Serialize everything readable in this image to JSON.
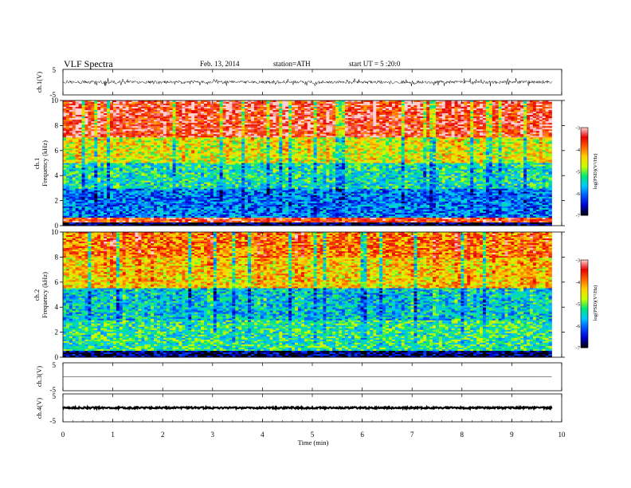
{
  "header": {
    "title": "VLF Spectra",
    "date": "Feb. 13, 2014",
    "station": "station=ATH",
    "start": "start UT = 5 :20:0"
  },
  "chart_data": [
    {
      "type": "line",
      "panel": "ch1-waveform",
      "ylabel": "ch.1(V)",
      "ylim": [
        -5,
        5
      ],
      "y_ticks": [
        "5",
        "-5"
      ],
      "xlim": [
        0,
        10
      ],
      "data_extent_min": [
        0,
        9.8
      ],
      "description_values": {
        "baseline_V": 0.0,
        "typical_noise_amplitude_V": 0.6,
        "max_spike_amplitude_V": 1.6
      }
    },
    {
      "type": "heatmap",
      "panel": "ch1-spectrogram",
      "ylabel": "ch.1 Frequency (kHz)",
      "ylim": [
        0,
        10
      ],
      "y_ticks": [
        "0",
        "2",
        "4",
        "6",
        "8",
        "10"
      ],
      "xlim": [
        0,
        10
      ],
      "data_extent_min": [
        0,
        9.8
      ],
      "colorbar": {
        "label": "log(PSD)(V²/Hz)",
        "range": [
          -7,
          -3
        ],
        "ticks": [
          "-3",
          "-4",
          "-5",
          "-6",
          "-7"
        ]
      },
      "frequency_profile": [
        {
          "freq_kHz": [
            0.0,
            0.3
          ],
          "logPSD": -6.8
        },
        {
          "freq_kHz": [
            0.3,
            0.6
          ],
          "logPSD": -3.6
        },
        {
          "freq_kHz": [
            0.6,
            3.0
          ],
          "logPSD": -6.0
        },
        {
          "freq_kHz": [
            3.0,
            5.0
          ],
          "logPSD": -5.4
        },
        {
          "freq_kHz": [
            5.0,
            7.0
          ],
          "logPSD": -4.6
        },
        {
          "freq_kHz": [
            7.0,
            10.0
          ],
          "logPSD": -3.5
        }
      ]
    },
    {
      "type": "heatmap",
      "panel": "ch2-spectrogram",
      "ylabel": "ch.2 Frequency (kHz)",
      "ylim": [
        0,
        10
      ],
      "y_ticks": [
        "0",
        "2",
        "4",
        "6",
        "8",
        "10"
      ],
      "xlim": [
        0,
        10
      ],
      "data_extent_min": [
        0,
        9.8
      ],
      "colorbar": {
        "label": "log(PSD)(V²/Hz)",
        "range": [
          -7,
          -3
        ],
        "ticks": [
          "-3",
          "-4",
          "-5",
          "-6",
          "-7"
        ]
      },
      "frequency_profile": [
        {
          "freq_kHz": [
            0.0,
            0.5
          ],
          "logPSD": -6.8
        },
        {
          "freq_kHz": [
            0.5,
            3.0
          ],
          "logPSD": -5.3
        },
        {
          "freq_kHz": [
            3.0,
            5.5
          ],
          "logPSD": -5.6
        },
        {
          "freq_kHz": [
            5.5,
            8.0
          ],
          "logPSD": -4.4
        },
        {
          "freq_kHz": [
            8.0,
            10.0
          ],
          "logPSD": -4.0
        }
      ]
    },
    {
      "type": "line",
      "panel": "ch3-waveform",
      "ylabel": "ch.3(V)",
      "ylim": [
        -5,
        5
      ],
      "y_ticks": [
        "5",
        "-5"
      ],
      "xlim": [
        0,
        10
      ],
      "data_extent_min": [
        0,
        9.8
      ],
      "description_values": {
        "baseline_V": 0.0,
        "typical_noise_amplitude_V": 0.05
      }
    },
    {
      "type": "line",
      "panel": "ch4-waveform",
      "ylabel": "ch.4(V)",
      "ylim": [
        -5,
        5
      ],
      "y_ticks": [
        "5",
        "-5"
      ],
      "xlim": [
        0,
        10
      ],
      "data_extent_min": [
        0,
        9.8
      ],
      "description_values": {
        "baseline_V": 0.0,
        "typical_noise_amplitude_V": 0.3
      }
    }
  ],
  "x_axis": {
    "label": "Time (min)",
    "ticks": [
      "0",
      "1",
      "2",
      "3",
      "4",
      "5",
      "6",
      "7",
      "8",
      "9",
      "10"
    ]
  },
  "colors": {
    "cmap": [
      "#000000",
      "#0000c8",
      "#0050ff",
      "#00c8ff",
      "#00e678",
      "#c8ff00",
      "#ffd200",
      "#ff6400",
      "#e60000",
      "#ffd2d2"
    ]
  }
}
